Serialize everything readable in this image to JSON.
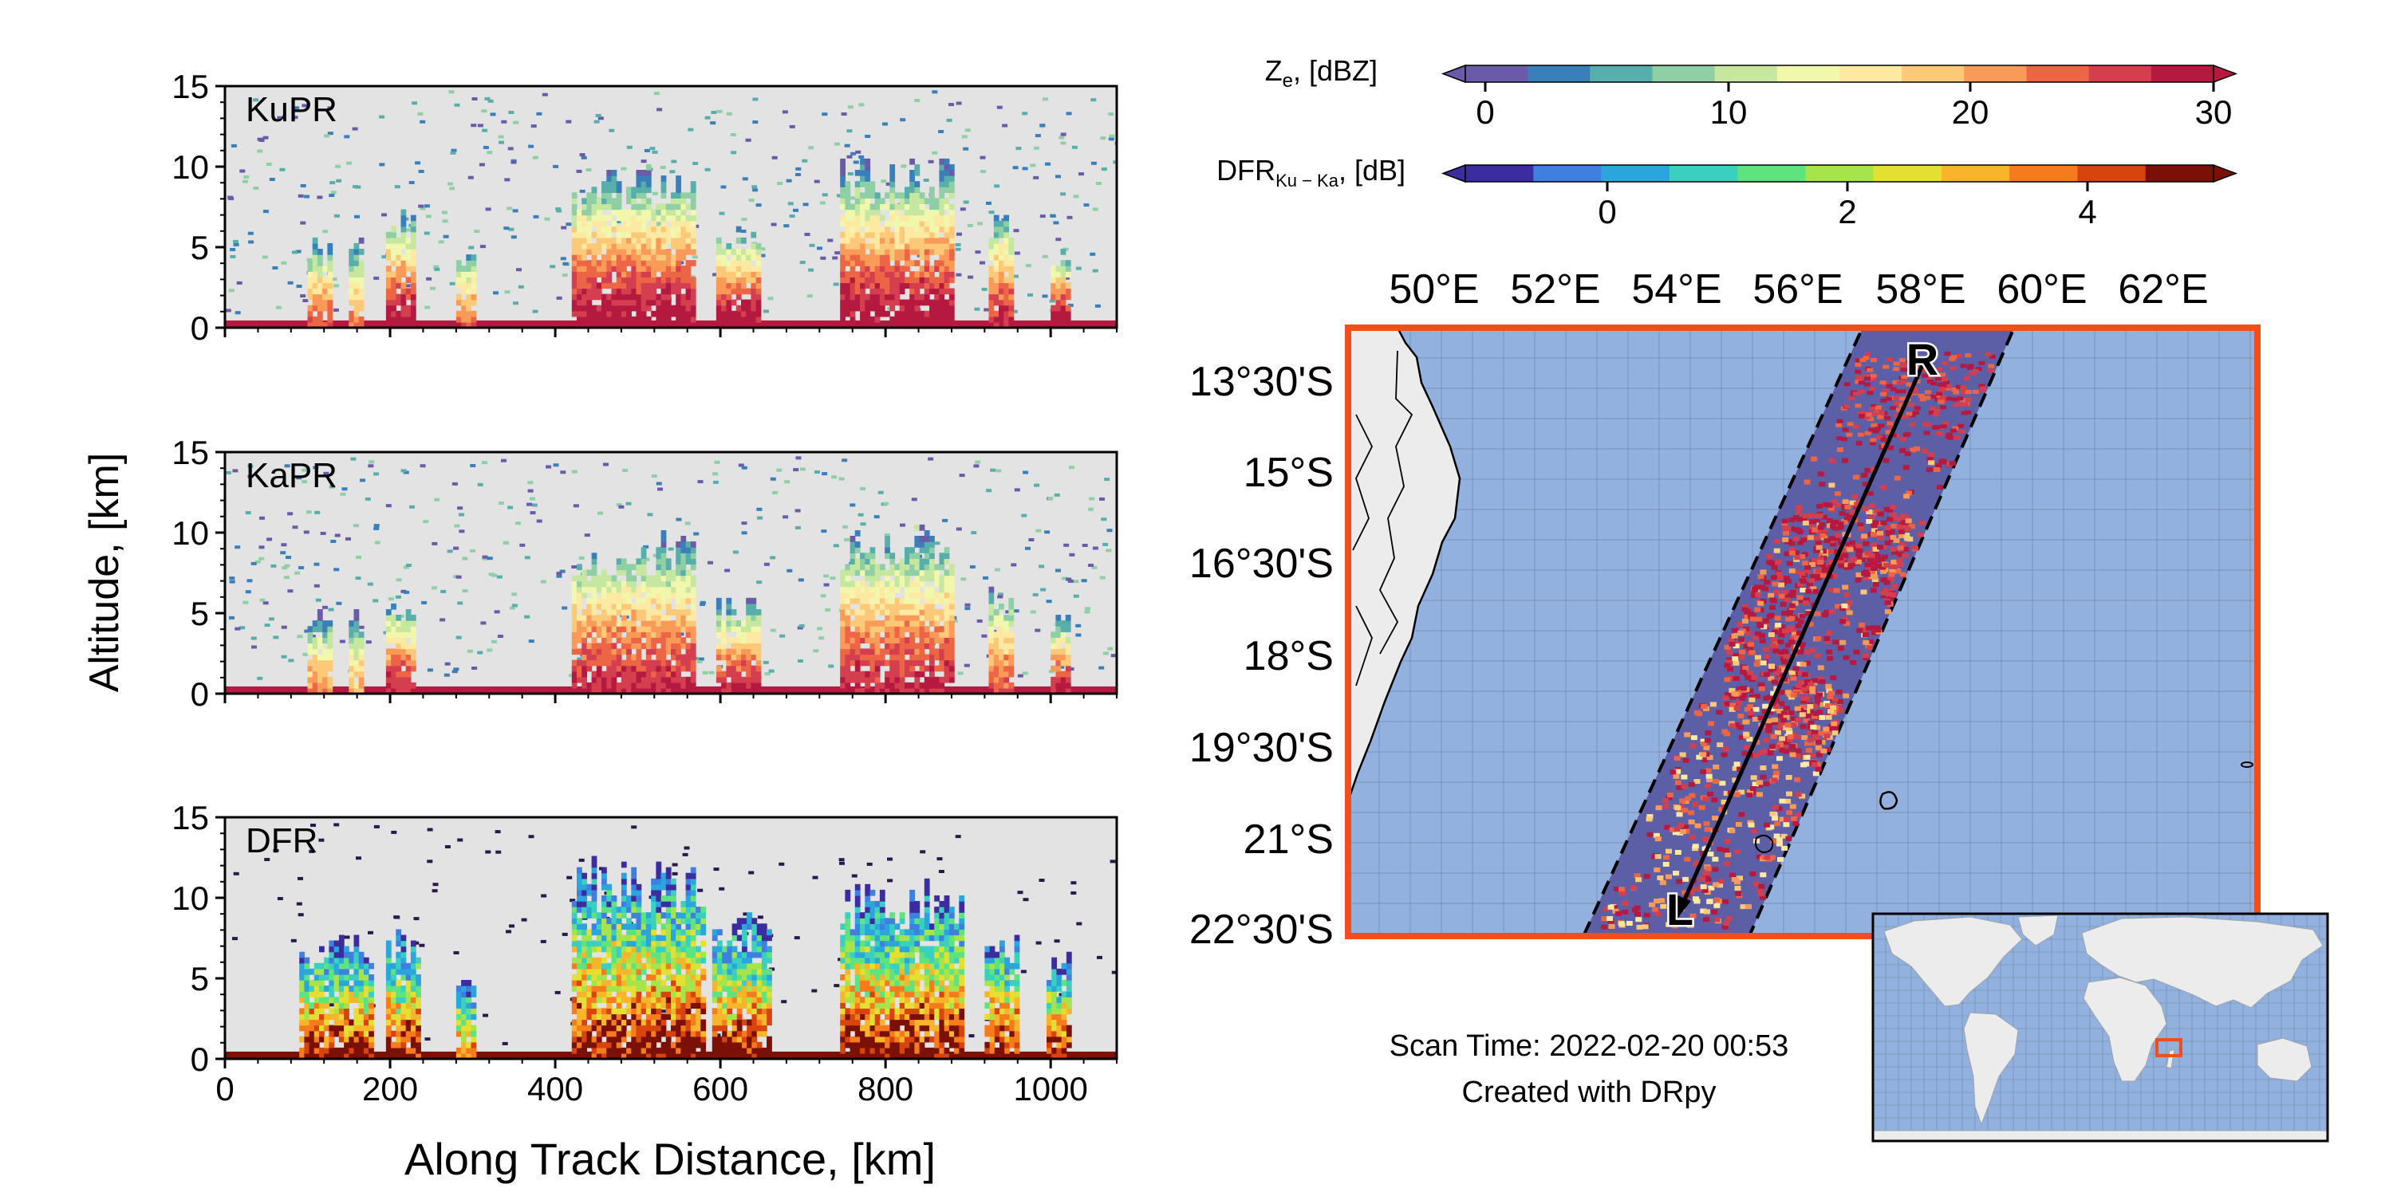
{
  "colors": {
    "panel_bg": "#e3e3e3",
    "ocean": "#92b1de",
    "land": "#ececec",
    "swath_bg": "#5c5fa6",
    "map_border": "#f04e1c",
    "track": "#000000"
  },
  "left_panels": {
    "ylabel": "Altitude, [km]",
    "xlabel": "Along Track Distance, [km]",
    "panels": [
      {
        "label": "KuPR"
      },
      {
        "label": "KaPR"
      },
      {
        "label": "DFR"
      }
    ]
  },
  "colorbars": {
    "ze_label": "Ze, [dBZ]",
    "ze_label_main": "Z",
    "ze_label_sub": "e",
    "ze_label_rest": ", [dBZ]",
    "ze_ticks": [
      "0",
      "10",
      "20",
      "30"
    ],
    "ze_colors": [
      "#6a5aa8",
      "#3a7fb9",
      "#58aeab",
      "#8fcfa5",
      "#c6e7a0",
      "#f1f7ad",
      "#fde9a2",
      "#fcc979",
      "#f99a58",
      "#ec6545",
      "#d53e4f",
      "#b5193f"
    ],
    "dfr_label": "DFRKu-Ka, [dB]",
    "dfr_label_main": "DFR",
    "dfr_label_sub": "Ku − Ka",
    "dfr_label_rest": ", [dB]",
    "dfr_ticks": [
      "0",
      "2",
      "4"
    ],
    "dfr_colors": [
      "#3b2ca0",
      "#3f7fe0",
      "#2aa6dd",
      "#3ad0c0",
      "#5ee37e",
      "#a7e34a",
      "#e4df33",
      "#f8b42a",
      "#f67b1d",
      "#d8440d",
      "#7a1006"
    ]
  },
  "map": {
    "lon_labels": [
      "50°E",
      "52°E",
      "54°E",
      "56°E",
      "58°E",
      "60°E",
      "62°E"
    ],
    "lat_labels": [
      "13°30'S",
      "15°S",
      "16°30'S",
      "18°S",
      "19°30'S",
      "21°S",
      "22°30'S"
    ],
    "track_start": "R",
    "track_end": "L"
  },
  "annotation": {
    "scan_time": "Scan Time: 2022-02-20 00:53",
    "credit": "Created with DRpy"
  },
  "chart_data": [
    {
      "type": "heatmap",
      "title": "KuPR",
      "xlabel": "Along Track Distance, [km]",
      "ylabel": "Altitude, [km]",
      "xlim": [
        0,
        1080
      ],
      "ylim": [
        0,
        15
      ],
      "x_ticks": [
        0,
        200,
        400,
        600,
        800,
        1000
      ],
      "y_ticks": [
        0,
        5,
        10,
        15
      ],
      "colorbar": "Ze, [dBZ]",
      "clim": [
        0,
        30
      ],
      "precip_cells": [
        {
          "x": [
            100,
            130
          ],
          "top_km": 5.5,
          "max_dbz": 25
        },
        {
          "x": [
            150,
            165
          ],
          "top_km": 5.5,
          "max_dbz": 22
        },
        {
          "x": [
            195,
            230
          ],
          "top_km": 7.5,
          "max_dbz": 30
        },
        {
          "x": [
            280,
            300
          ],
          "top_km": 5,
          "max_dbz": 24
        },
        {
          "x": [
            420,
            565
          ],
          "top_km": 10,
          "max_dbz": 30
        },
        {
          "x": [
            595,
            645
          ],
          "top_km": 6.5,
          "max_dbz": 30
        },
        {
          "x": [
            745,
            880
          ],
          "top_km": 10.5,
          "max_dbz": 30
        },
        {
          "x": [
            925,
            950
          ],
          "top_km": 7.5,
          "max_dbz": 28
        },
        {
          "x": [
            1000,
            1020
          ],
          "top_km": 5,
          "max_dbz": 30
        }
      ]
    },
    {
      "type": "heatmap",
      "title": "KaPR",
      "xlabel": "Along Track Distance, [km]",
      "ylabel": "Altitude, [km]",
      "xlim": [
        0,
        1080
      ],
      "ylim": [
        0,
        15
      ],
      "x_ticks": [
        0,
        200,
        400,
        600,
        800,
        1000
      ],
      "y_ticks": [
        0,
        5,
        10,
        15
      ],
      "colorbar": "Ze, [dBZ]",
      "clim": [
        0,
        30
      ],
      "precip_cells": [
        {
          "x": [
            100,
            130
          ],
          "top_km": 5,
          "max_dbz": 22
        },
        {
          "x": [
            150,
            165
          ],
          "top_km": 5,
          "max_dbz": 20
        },
        {
          "x": [
            195,
            230
          ],
          "top_km": 6,
          "max_dbz": 28
        },
        {
          "x": [
            420,
            565
          ],
          "top_km": 10,
          "max_dbz": 28
        },
        {
          "x": [
            595,
            645
          ],
          "top_km": 6,
          "max_dbz": 28
        },
        {
          "x": [
            745,
            880
          ],
          "top_km": 10.5,
          "max_dbz": 28
        },
        {
          "x": [
            925,
            950
          ],
          "top_km": 7,
          "max_dbz": 25
        },
        {
          "x": [
            1000,
            1020
          ],
          "top_km": 5,
          "max_dbz": 28
        }
      ]
    },
    {
      "type": "heatmap",
      "title": "DFR",
      "xlabel": "Along Track Distance, [km]",
      "ylabel": "Altitude, [km]",
      "xlim": [
        0,
        1080
      ],
      "ylim": [
        0,
        15
      ],
      "x_ticks": [
        0,
        200,
        400,
        600,
        800,
        1000
      ],
      "y_ticks": [
        0,
        5,
        10,
        15
      ],
      "colorbar": "DFRKu-Ka, [dB]",
      "clim": [
        -1,
        5
      ],
      "precip_cells": [
        {
          "x": [
            90,
            180
          ],
          "top_km": 7.5,
          "max_db": 5
        },
        {
          "x": [
            195,
            235
          ],
          "top_km": 8,
          "max_db": 5
        },
        {
          "x": [
            280,
            300
          ],
          "top_km": 5,
          "max_db": 4
        },
        {
          "x": [
            420,
            580
          ],
          "top_km": 12.5,
          "max_db": 5
        },
        {
          "x": [
            590,
            660
          ],
          "top_km": 9,
          "max_db": 5
        },
        {
          "x": [
            745,
            890
          ],
          "top_km": 11,
          "max_db": 5
        },
        {
          "x": [
            920,
            960
          ],
          "top_km": 8,
          "max_db": 5
        },
        {
          "x": [
            995,
            1020
          ],
          "top_km": 6.5,
          "max_db": 5
        }
      ]
    }
  ]
}
